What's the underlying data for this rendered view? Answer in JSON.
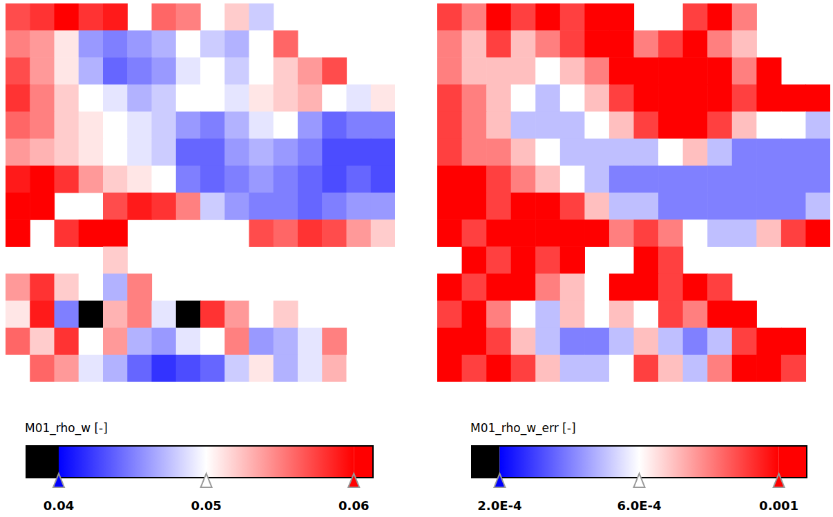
{
  "chart_data": [
    {
      "type": "heatmap",
      "tick_labels": false,
      "colorbar_label": "M01_rho_w [-]",
      "colorbar_range": [
        0.0378,
        0.0613
      ],
      "colorbar_ticks": [
        0.04,
        0.05,
        0.06
      ],
      "cells": [
        [
          0.057,
          0.058,
          0.06,
          0.058,
          0.059,
          null,
          0.056,
          0.055,
          null,
          0.052,
          0.048,
          null,
          null,
          null,
          null,
          null
        ],
        [
          0.055,
          0.054,
          0.051,
          0.046,
          0.045,
          0.046,
          0.047,
          0.05,
          0.048,
          0.047,
          0.05,
          0.056,
          null,
          null,
          null,
          null
        ],
        [
          0.057,
          0.054,
          0.051,
          0.047,
          0.044,
          0.045,
          0.046,
          0.049,
          0.05,
          0.048,
          0.05,
          0.052,
          0.054,
          0.057,
          null,
          null
        ],
        [
          0.058,
          0.055,
          0.052,
          0.05,
          0.049,
          0.047,
          0.048,
          0.05,
          0.05,
          0.049,
          0.051,
          0.052,
          0.053,
          0.05,
          0.049,
          0.051
        ],
        [
          0.056,
          0.055,
          0.052,
          0.051,
          0.05,
          0.049,
          0.048,
          0.046,
          0.045,
          0.047,
          0.049,
          0.05,
          0.046,
          0.044,
          0.045,
          0.045
        ],
        [
          0.054,
          0.053,
          0.052,
          0.051,
          0.05,
          0.049,
          0.048,
          0.044,
          0.044,
          0.046,
          0.047,
          0.046,
          0.045,
          0.043,
          0.043,
          0.043
        ],
        [
          0.059,
          0.06,
          0.058,
          0.054,
          0.052,
          0.051,
          0.05,
          0.045,
          0.044,
          0.045,
          0.046,
          0.045,
          0.044,
          0.043,
          0.044,
          0.043
        ],
        [
          0.06,
          0.061,
          null,
          null,
          0.057,
          0.059,
          0.058,
          0.055,
          0.048,
          0.046,
          0.045,
          0.045,
          0.044,
          0.045,
          0.046,
          0.046
        ],
        [
          0.061,
          null,
          0.058,
          0.06,
          0.06,
          null,
          null,
          null,
          null,
          null,
          0.057,
          0.056,
          0.058,
          0.057,
          0.054,
          0.052
        ],
        [
          null,
          null,
          null,
          null,
          0.052,
          null,
          null,
          null,
          null,
          null,
          null,
          null,
          null,
          null,
          null,
          null
        ],
        [
          0.054,
          0.058,
          0.052,
          0.05,
          0.047,
          0.055,
          null,
          null,
          null,
          null,
          null,
          null,
          null,
          null,
          null,
          null
        ],
        [
          0.051,
          0.059,
          0.045,
          0.038,
          0.053,
          0.055,
          0.049,
          0.038,
          0.058,
          0.054,
          0.05,
          0.052,
          null,
          null,
          null,
          null
        ],
        [
          0.056,
          0.052,
          0.058,
          0.05,
          0.054,
          0.047,
          0.046,
          0.049,
          0.05,
          0.055,
          0.046,
          0.047,
          0.049,
          0.055,
          null,
          null
        ],
        [
          0.05,
          0.056,
          0.054,
          0.049,
          0.047,
          0.044,
          0.042,
          0.043,
          0.044,
          0.048,
          0.051,
          0.047,
          0.049,
          0.053,
          0.05,
          null
        ]
      ]
    },
    {
      "type": "heatmap",
      "tick_labels": false,
      "colorbar_label": "M01_rho_w_err [-]",
      "colorbar_range": [
        0.00012,
        0.00108
      ],
      "colorbar_ticks": [
        {
          "value": 0.0002,
          "label": "2.0E-4"
        },
        {
          "value": 0.0006,
          "label": "6.0E-4"
        },
        0.001
      ],
      "cells": [
        [
          0.0009,
          0.0008,
          0.001,
          0.0009,
          0.0011,
          0.0009,
          0.0011,
          0.0012,
          null,
          null,
          0.0009,
          0.0011,
          0.0008,
          null,
          null,
          null
        ],
        [
          0.0008,
          0.0007,
          0.0009,
          0.0007,
          0.0008,
          0.0009,
          0.0011,
          0.0011,
          0.0008,
          0.0009,
          0.001,
          0.0008,
          0.0007,
          null,
          null,
          null
        ],
        [
          0.0008,
          0.0007,
          0.0007,
          0.0007,
          0.0006,
          0.0007,
          0.0008,
          0.001,
          0.0011,
          0.0012,
          0.0012,
          0.001,
          0.0008,
          0.001,
          null,
          null
        ],
        [
          0.0009,
          0.0008,
          0.0007,
          0.0006,
          0.0005,
          0.0006,
          0.0007,
          0.0009,
          0.001,
          0.0012,
          0.0012,
          0.0011,
          0.0009,
          0.0011,
          0.0012,
          0.0011
        ],
        [
          0.0009,
          0.0008,
          0.0007,
          0.0005,
          0.0005,
          0.0005,
          0.0006,
          0.0007,
          0.0009,
          0.0011,
          0.0013,
          0.0009,
          0.0007,
          0.0006,
          0.0006,
          0.0005
        ],
        [
          0.0009,
          0.0008,
          0.0008,
          0.0007,
          0.0006,
          0.0005,
          0.0005,
          0.0005,
          0.0005,
          0.0006,
          0.0007,
          0.0005,
          0.0004,
          0.0004,
          0.0004,
          0.0004
        ],
        [
          0.0011,
          0.001,
          0.0009,
          0.0008,
          0.0007,
          0.0006,
          0.0005,
          0.0004,
          0.0004,
          0.0004,
          0.0004,
          0.0004,
          0.0004,
          0.0004,
          0.0004,
          0.0004
        ],
        [
          0.001,
          0.0011,
          0.0009,
          0.001,
          0.0011,
          0.0009,
          0.0007,
          0.0005,
          0.0005,
          0.0004,
          0.0004,
          0.0004,
          0.0004,
          0.0004,
          0.0004,
          0.0005
        ],
        [
          0.0011,
          0.0009,
          0.0011,
          0.001,
          0.0011,
          0.001,
          0.0011,
          0.0008,
          0.0009,
          0.0008,
          0.0006,
          0.0005,
          0.0005,
          0.0007,
          0.0009,
          0.0011
        ],
        [
          null,
          0.001,
          0.0009,
          0.0011,
          0.0009,
          0.001,
          null,
          null,
          0.001,
          0.0009,
          null,
          null,
          null,
          null,
          null,
          null
        ],
        [
          0.001,
          0.0009,
          0.0012,
          0.001,
          0.0008,
          0.0007,
          0.0006,
          0.001,
          0.0011,
          0.0009,
          0.001,
          0.0009,
          null,
          null,
          null,
          null
        ],
        [
          0.0009,
          0.0011,
          0.0008,
          0.0006,
          0.0005,
          0.0007,
          0.0006,
          0.0007,
          0.0006,
          0.0009,
          0.0008,
          0.001,
          0.001,
          null,
          null,
          null
        ],
        [
          0.0011,
          0.001,
          0.0009,
          0.0007,
          0.0005,
          0.0004,
          0.0004,
          0.0005,
          0.0007,
          0.0005,
          0.0004,
          0.0005,
          0.0009,
          0.001,
          0.0011,
          null
        ],
        [
          0.001,
          0.0009,
          0.001,
          0.0009,
          0.0007,
          0.0005,
          0.0005,
          0.0006,
          0.0009,
          0.0007,
          0.0005,
          0.0008,
          0.0011,
          0.001,
          0.0009,
          null
        ]
      ]
    }
  ]
}
